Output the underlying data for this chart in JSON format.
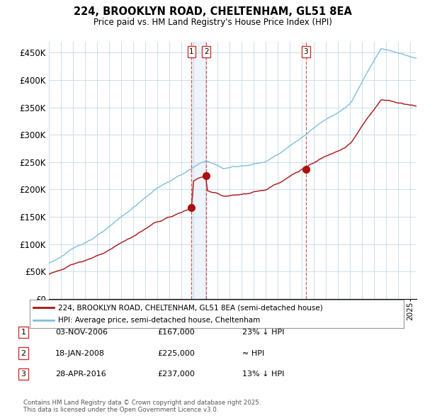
{
  "title_line1": "224, BROOKLYN ROAD, CHELTENHAM, GL51 8EA",
  "title_line2": "Price paid vs. HM Land Registry's House Price Index (HPI)",
  "ylim": [
    0,
    470000
  ],
  "yticks": [
    0,
    50000,
    100000,
    150000,
    200000,
    250000,
    300000,
    350000,
    400000,
    450000
  ],
  "ytick_labels": [
    "£0",
    "£50K",
    "£100K",
    "£150K",
    "£200K",
    "£250K",
    "£300K",
    "£350K",
    "£400K",
    "£450K"
  ],
  "hpi_color": "#7fbfdd",
  "price_color": "#aa1111",
  "marker_color": "#aa1111",
  "vline_color": "#cc3333",
  "background_color": "#ffffff",
  "grid_color": "#ccddee",
  "legend_label_red": "224, BROOKLYN ROAD, CHELTENHAM, GL51 8EA (semi-detached house)",
  "legend_label_blue": "HPI: Average price, semi-detached house, Cheltenham",
  "transaction1_date": "03-NOV-2006",
  "transaction1_price": 167000,
  "transaction1_note": "23% ↓ HPI",
  "transaction1_year": 2006.84,
  "transaction2_date": "18-JAN-2008",
  "transaction2_price": 225000,
  "transaction2_note": "≈ HPI",
  "transaction2_year": 2008.05,
  "transaction3_date": "28-APR-2016",
  "transaction3_price": 237000,
  "transaction3_note": "13% ↓ HPI",
  "transaction3_year": 2016.32,
  "footnote": "Contains HM Land Registry data © Crown copyright and database right 2025.\nThis data is licensed under the Open Government Licence v3.0.",
  "xlim_start": 1995.0,
  "xlim_end": 2025.5
}
